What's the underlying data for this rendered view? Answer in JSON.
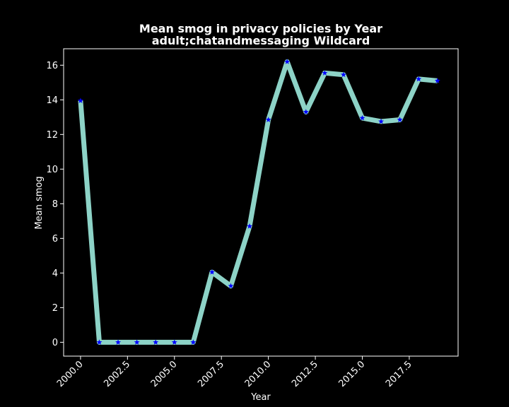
{
  "chart_data": {
    "type": "line",
    "title": "Mean smog in privacy policies by Year",
    "subtitle": "adult;chatandmessaging Wildcard",
    "xlabel": "Year",
    "ylabel": "Mean smog",
    "xlim": [
      1999.1,
      2020.1
    ],
    "ylim": [
      -0.8,
      16.95
    ],
    "x_ticks": [
      2000.0,
      2002.5,
      2005.0,
      2007.5,
      2010.0,
      2012.5,
      2015.0,
      2017.5
    ],
    "x_tick_labels": [
      "2000.0",
      "2002.5",
      "2005.0",
      "2007.5",
      "2010.0",
      "2012.5",
      "2015.0",
      "2017.5"
    ],
    "y_ticks": [
      0,
      2,
      4,
      6,
      8,
      10,
      12,
      14,
      16
    ],
    "y_tick_labels": [
      "0",
      "2",
      "4",
      "6",
      "8",
      "10",
      "12",
      "14",
      "16"
    ],
    "grid": false,
    "series": [
      {
        "x": [
          2000,
          2001,
          2002,
          2003,
          2004,
          2005,
          2006,
          2007,
          2008,
          2009,
          2010,
          2011,
          2012,
          2013,
          2014,
          2015,
          2016,
          2017,
          2018,
          2019
        ],
        "values": [
          13.95,
          0.0,
          0.0,
          0.0,
          0.0,
          0.0,
          0.0,
          4.05,
          3.25,
          6.7,
          12.85,
          16.2,
          13.3,
          15.55,
          15.45,
          12.95,
          12.75,
          12.85,
          15.2,
          15.1
        ],
        "line_color": "#8dd3c7",
        "marker_color": "#0000ff",
        "marker": "star"
      }
    ]
  }
}
